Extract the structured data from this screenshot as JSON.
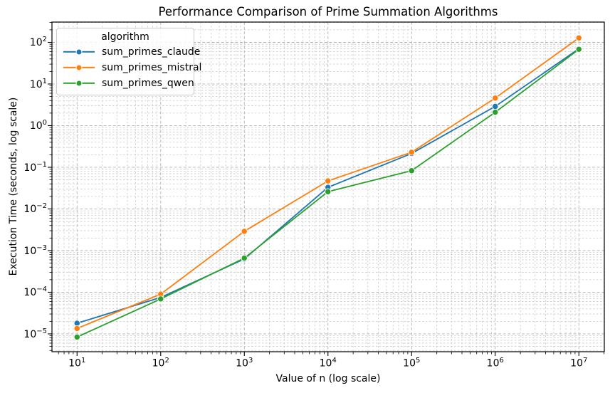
{
  "chart_data": {
    "type": "line",
    "title": "Performance Comparison of Prime Summation Algorithms",
    "xlabel": "Value of n (log scale)",
    "ylabel": "Execution Time (seconds, log scale)",
    "xscale": "log",
    "yscale": "log",
    "grid": "both-major-and-minor, dashed gray",
    "x": [
      10,
      100,
      1000,
      10000,
      100000,
      1000000,
      10000000
    ],
    "series": [
      {
        "name": "sum_primes_claude",
        "color": "#1f77b4",
        "values": [
          1.8e-05,
          7.5e-05,
          0.00063,
          0.033,
          0.215,
          2.9,
          70
        ]
      },
      {
        "name": "sum_primes_mistral",
        "color": "#ff7f0e",
        "values": [
          1.35e-05,
          9e-05,
          0.0029,
          0.047,
          0.23,
          4.6,
          128
        ]
      },
      {
        "name": "sum_primes_qwen",
        "color": "#2ca02c",
        "values": [
          8.4e-06,
          6.9e-05,
          0.00066,
          0.026,
          0.083,
          2.1,
          68
        ]
      }
    ],
    "legend": {
      "title": "algorithm",
      "position": "upper left"
    },
    "x_tick_exponents": [
      1,
      2,
      3,
      4,
      5,
      6,
      7
    ],
    "y_tick_exponents": [
      2,
      1,
      0,
      -1,
      -2,
      -3,
      -4,
      -5
    ],
    "xlim_log10": [
      0.7,
      7.304
    ],
    "ylim_log10": [
      -5.428,
      2.487
    ],
    "colors": {
      "grid_major": "#b2b2b2",
      "grid_minor": "#c9c9c9",
      "spine": "#000000"
    }
  }
}
